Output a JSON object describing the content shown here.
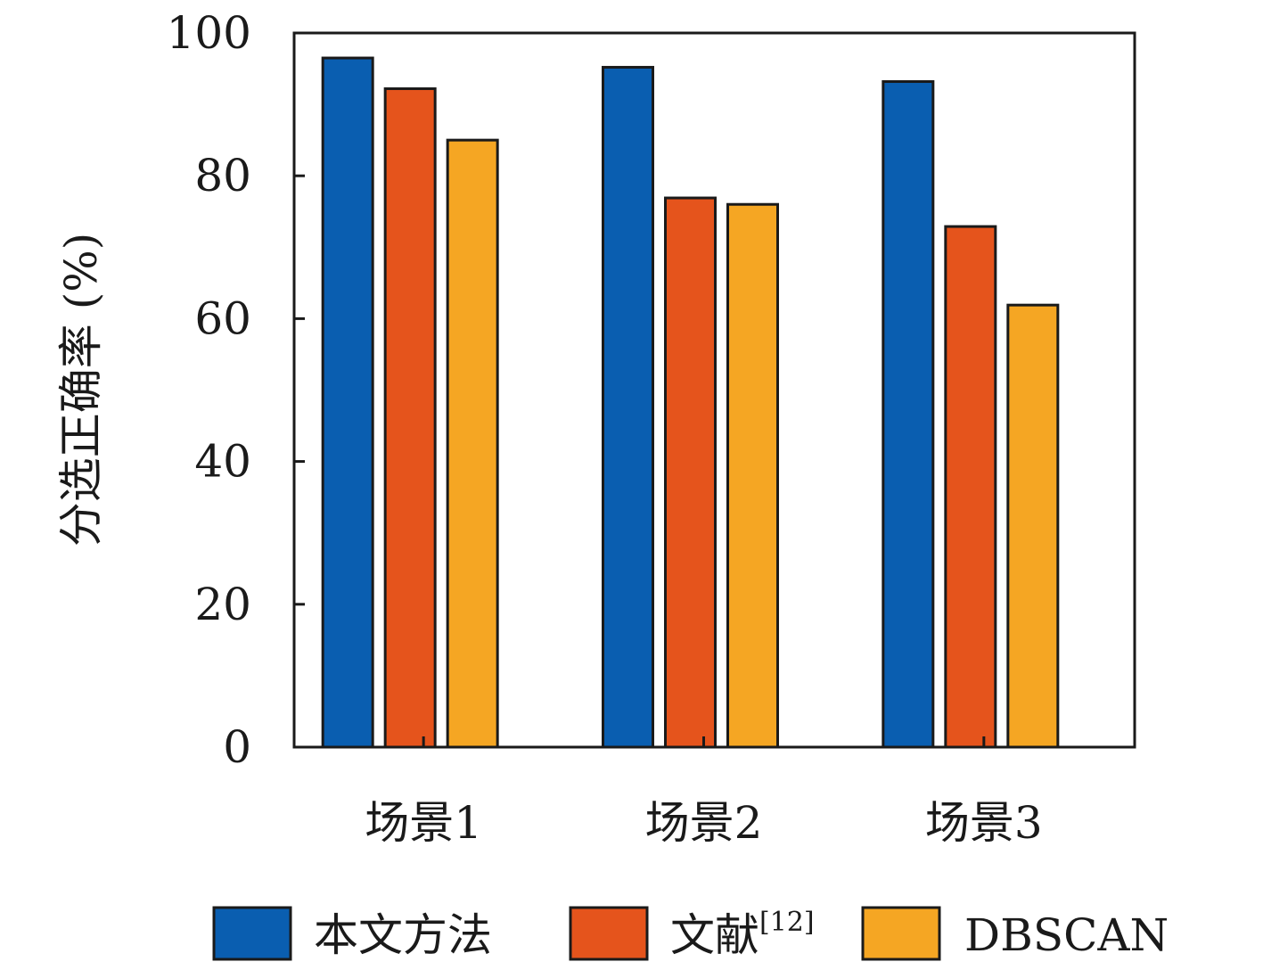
{
  "chart_data": {
    "type": "bar",
    "title": "",
    "xlabel": "",
    "ylabel": "分选正确率 (%)",
    "ylim": [
      0,
      100
    ],
    "yticks": [
      0,
      20,
      40,
      60,
      80,
      100
    ],
    "ytick_labels": [
      "0",
      "20",
      "40",
      "60",
      "80",
      "100"
    ],
    "categories": [
      "场景1",
      "场景2",
      "场景3"
    ],
    "series": [
      {
        "name": "本文方法",
        "color": "#0a5eb0",
        "values": [
          96.5,
          95.2,
          93.2
        ]
      },
      {
        "name": "文献",
        "name_superscript": "[12]",
        "color": "#e5541c",
        "values": [
          92.2,
          76.9,
          72.9
        ]
      },
      {
        "name": "DBSCAN",
        "color": "#f5a623",
        "values": [
          85.0,
          76.0,
          61.9
        ]
      }
    ],
    "grid": false,
    "legend_position": "bottom"
  }
}
